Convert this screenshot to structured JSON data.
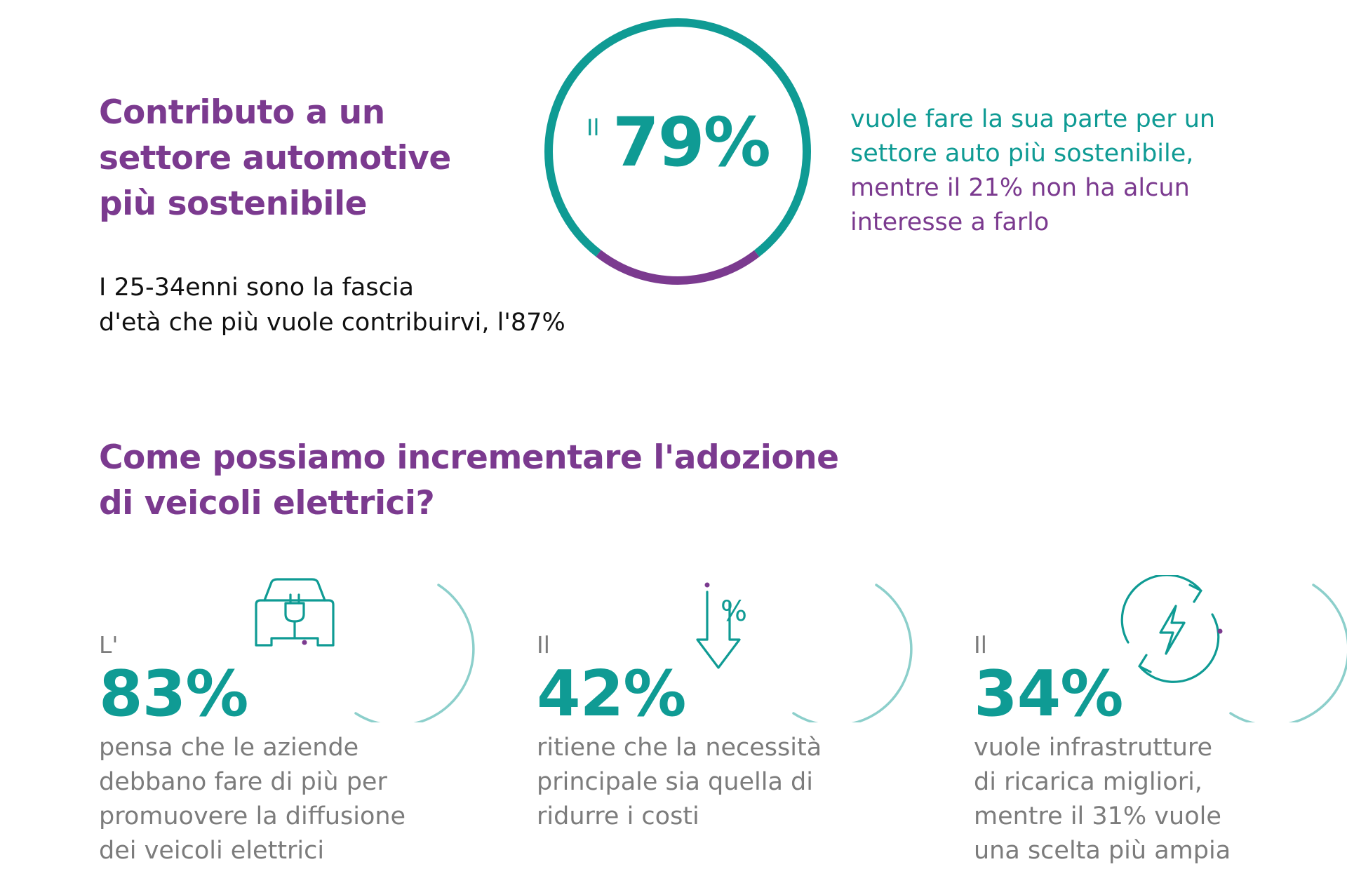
{
  "section1": {
    "title_lines": [
      "Contributo a un",
      "settore automotive",
      "più sostenibile"
    ],
    "note_lines": [
      "I 25-34enni sono la fascia",
      "d'età che più vuole contribuirvi, l'87%"
    ],
    "ring": {
      "prefix": "Il",
      "value_label": "79%",
      "share_teal": 0.79,
      "share_purple": 0.21,
      "color_teal": "#0f9b94",
      "color_purple": "#7b3a8f"
    },
    "caption_lines": [
      {
        "text": "vuole fare la sua parte per un",
        "color": "teal"
      },
      {
        "text": "settore auto più sostenibile,",
        "color": "teal"
      },
      {
        "text": "mentre il 21% non ha alcun",
        "color": "purple"
      },
      {
        "text": "interesse a farlo",
        "color": "purple"
      }
    ]
  },
  "section2": {
    "title_lines": [
      "Come possiamo incrementare l'adozione",
      "di veicoli elettrici?"
    ],
    "stats": [
      {
        "prefix": "L'",
        "value": "83%",
        "icon": "ev-charging-car-icon",
        "desc_lines": [
          "pensa che le aziende",
          "debbano fare di più per",
          "promuovere la diffusione",
          "dei veicoli elettrici"
        ]
      },
      {
        "prefix": "Il",
        "value": "42%",
        "icon": "cost-reduction-arrow-icon",
        "icon_text": "%",
        "desc_lines": [
          "ritiene che la necessità",
          "principale sia quella di",
          "ridurre i costi"
        ]
      },
      {
        "prefix": "Il",
        "value": "34%",
        "icon": "recharge-cycle-icon",
        "desc_lines": [
          "vuole infrastrutture",
          "di ricarica migliori,",
          "mentre il 31% vuole",
          "una scelta più ampia"
        ]
      }
    ]
  }
}
